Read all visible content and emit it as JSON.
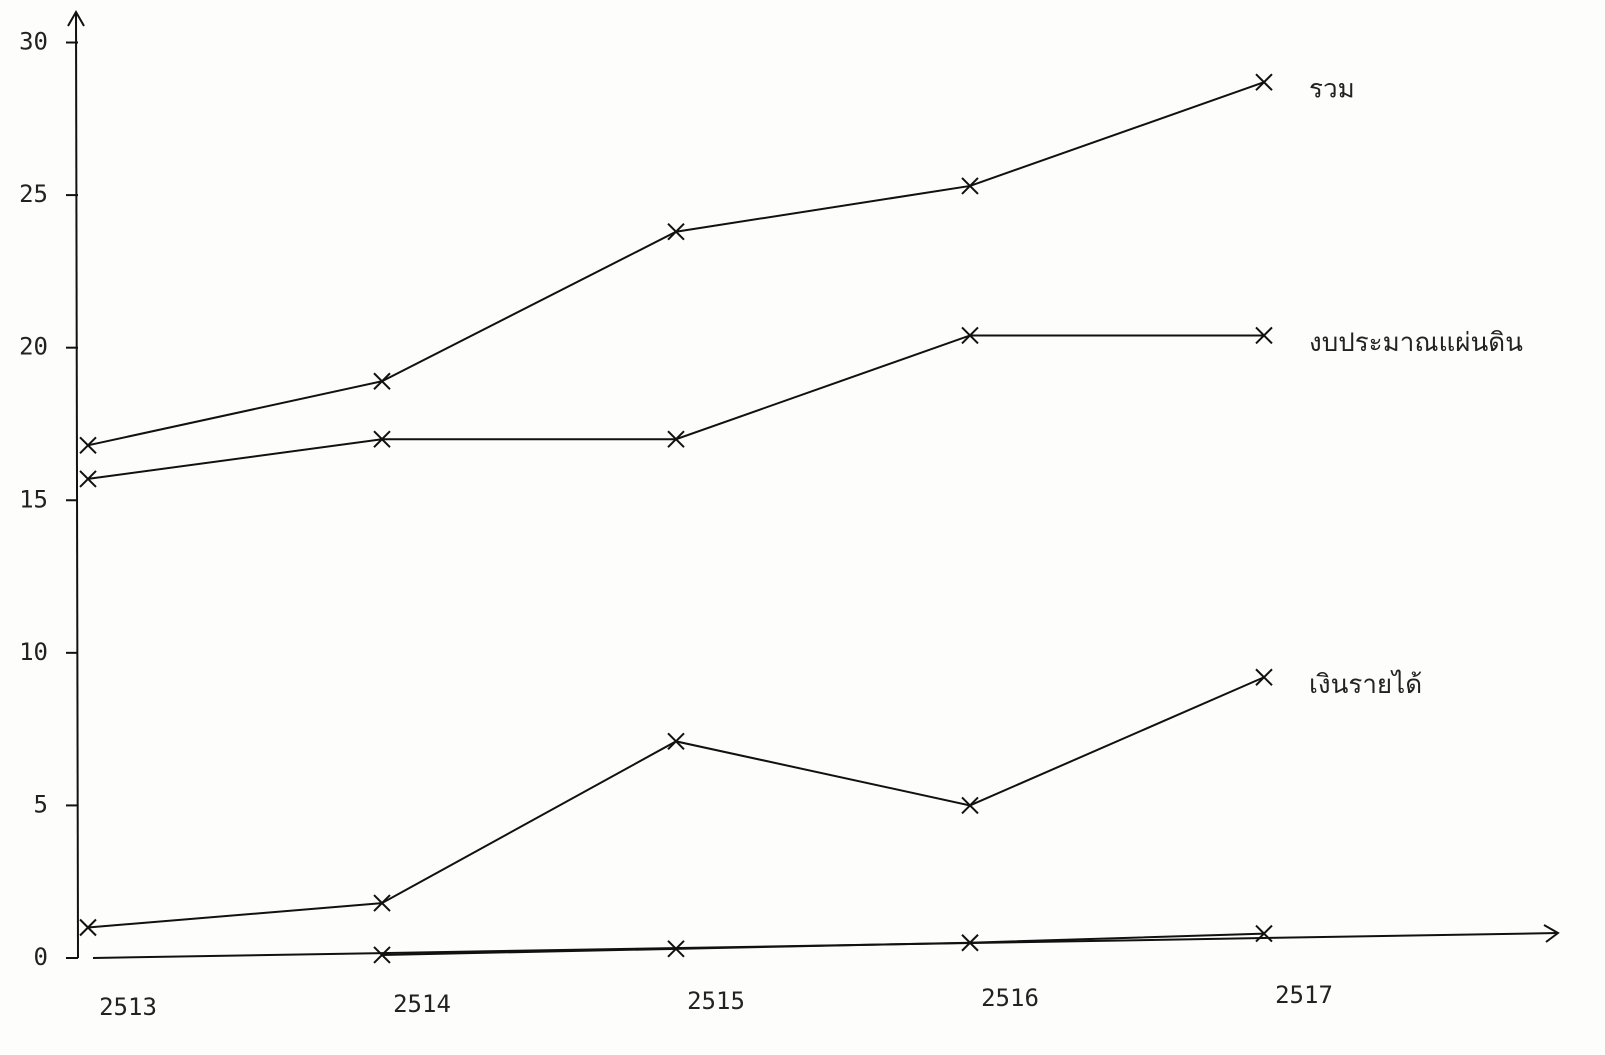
{
  "chart_data": {
    "type": "line",
    "x": [
      2513,
      2514,
      2515,
      2516,
      2517
    ],
    "xlim": [
      2513,
      2518
    ],
    "xticks": [
      2513,
      2514,
      2515,
      2516,
      2517
    ],
    "ylim": [
      0,
      31
    ],
    "yticks": [
      0,
      5,
      10,
      15,
      20,
      25,
      30
    ],
    "series": [
      {
        "name": "รวม",
        "color": "#111111",
        "values": [
          16.8,
          18.9,
          23.8,
          25.3,
          28.7
        ]
      },
      {
        "name": "งบประมาณแผ่นดิน",
        "color": "#111111",
        "values": [
          15.7,
          17.0,
          17.0,
          20.4,
          20.4
        ]
      },
      {
        "name": "เงินรายได้",
        "color": "#111111",
        "values": [
          1.0,
          1.8,
          7.1,
          5.0,
          9.2
        ]
      },
      {
        "color": "#111111",
        "values": [
          null,
          0.1,
          0.3,
          0.5,
          0.8
        ]
      }
    ]
  }
}
